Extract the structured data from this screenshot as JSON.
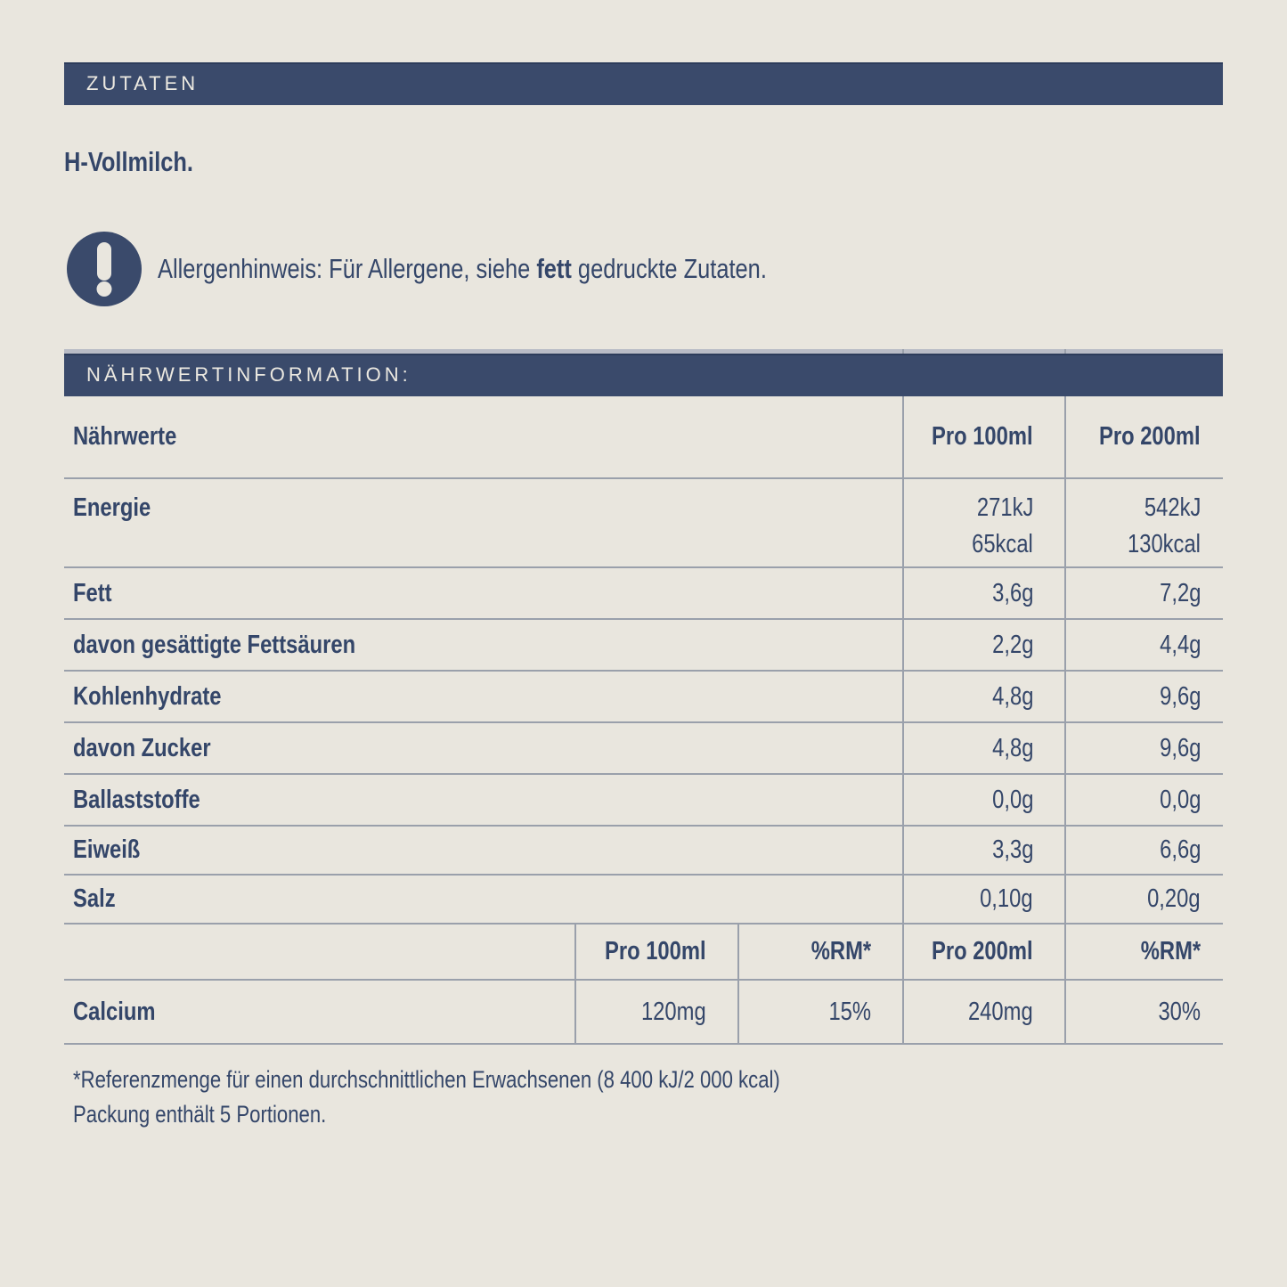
{
  "colors": {
    "background": "#e9e6de",
    "bar_navy": "#3a4a6b",
    "text_navy": "#344669",
    "bar_text_cream": "#ece9e1",
    "hairline_gray": "#9aa0ab",
    "table_top_strip": "#b9bcc6"
  },
  "ingredients": {
    "title": "ZUTATEN",
    "content": "H-Vollmilch."
  },
  "allergen": {
    "icon": "exclamation-icon",
    "prefix": "Allergenhinweis: Für Allergene, siehe ",
    "bold_word": "fett",
    "suffix": " gedruckte Zutaten."
  },
  "nutrition": {
    "title": "NÄHRWERTINFORMATION:",
    "columns": {
      "label": "Nährwerte",
      "per100": "Pro 100ml",
      "per200": "Pro 200ml"
    },
    "rows": [
      {
        "label": "Energie",
        "per100_kj": "271kJ",
        "per100_kcal": "65kcal",
        "per200_kj": "542kJ",
        "per200_kcal": "130kcal"
      },
      {
        "label": "Fett",
        "per100": "3,6g",
        "per200": "7,2g"
      },
      {
        "label": "davon gesättigte Fettsäuren",
        "per100": "2,2g",
        "per200": "4,4g"
      },
      {
        "label": "Kohlenhydrate",
        "per100": "4,8g",
        "per200": "9,6g"
      },
      {
        "label": "davon Zucker",
        "per100": "4,8g",
        "per200": "9,6g"
      },
      {
        "label": "Ballaststoffe",
        "per100": "0,0g",
        "per200": "0,0g"
      },
      {
        "label": "Eiweiß",
        "per100": "3,3g",
        "per200": "6,6g"
      },
      {
        "label": "Salz",
        "per100": "0,10g",
        "per200": "0,20g"
      }
    ],
    "subtable": {
      "headers": {
        "per100": "Pro 100ml",
        "rm100": "%RM*",
        "per200": "Pro 200ml",
        "rm200": "%RM*"
      },
      "rows": [
        {
          "label": "Calcium",
          "per100": "120mg",
          "rm100": "15%",
          "per200": "240mg",
          "rm200": "30%"
        }
      ]
    },
    "footnotes": [
      "*Referenzmenge für einen durchschnittlichen Erwachsenen (8 400 kJ/2 000 kcal)",
      "Packung enthält 5 Portionen."
    ]
  }
}
